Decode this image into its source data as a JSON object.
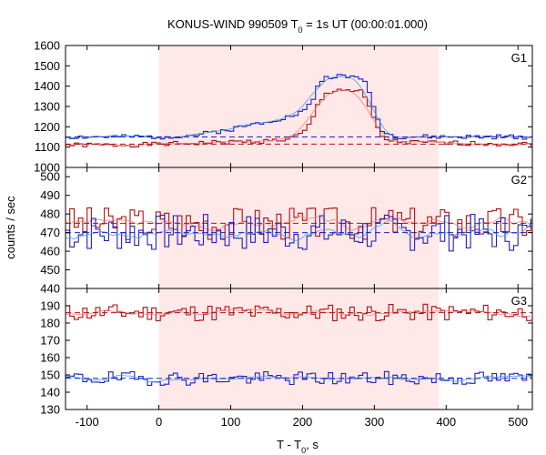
{
  "chart_data": {
    "type": "line",
    "title": "KONUS-WIND 990509 T",
    "title_sub": "0",
    "title_rest": " = 1s UT (00:00:01.000)",
    "xlabel": "T - T",
    "xlabel_sub": "0",
    "xlabel_rest": ", s",
    "ylabel": "counts / sec",
    "xlim": [
      -130,
      520
    ],
    "x_ticks": [
      -100,
      0,
      100,
      200,
      300,
      400,
      500
    ],
    "shaded_interval": [
      0,
      390
    ],
    "colors": {
      "red": "#b01010",
      "blue": "#2020c0",
      "pink": "#f08080",
      "lightblue": "#40a0e0",
      "shade": "#ffe8e8"
    },
    "panels": [
      {
        "label": "G1",
        "ylim": [
          1000,
          1600
        ],
        "y_ticks": [
          1000,
          1100,
          1200,
          1300,
          1400,
          1500,
          1600
        ],
        "background": {
          "red": 1115,
          "blue": 1150
        },
        "series": [
          {
            "name": "",
            "color": "#b01010",
            "x": [
              -130,
              -100,
              -50,
              0,
              50,
              100,
              150,
              180,
              200,
              210,
              220,
              230,
              240,
              250,
              260,
              270,
              280,
              290,
              300,
              310,
              330,
              400,
              520
            ],
            "y": [
              1110,
              1110,
              1110,
              1115,
              1120,
              1125,
              1130,
              1140,
              1175,
              1230,
              1320,
              1360,
              1380,
              1385,
              1380,
              1375,
              1370,
              1300,
              1200,
              1140,
              1125,
              1120,
              1115
            ]
          },
          {
            "name": "",
            "color": "#2020c0",
            "x": [
              -130,
              -100,
              -50,
              0,
              50,
              100,
              150,
              180,
              200,
              210,
              220,
              230,
              240,
              250,
              260,
              270,
              280,
              290,
              300,
              310,
              330,
              400,
              520
            ],
            "y": [
              1150,
              1150,
              1150,
              1150,
              1160,
              1190,
              1230,
              1250,
              1280,
              1320,
              1420,
              1440,
              1450,
              1450,
              1440,
              1450,
              1440,
              1380,
              1250,
              1170,
              1150,
              1150,
              1150
            ]
          }
        ]
      },
      {
        "label": "G2",
        "ylim": [
          440,
          505
        ],
        "y_ticks": [
          440,
          450,
          460,
          470,
          480,
          490,
          500
        ],
        "background": {
          "red": 475,
          "blue": 470
        },
        "series": [
          {
            "name": "",
            "color": "#b01010",
            "mean": 475,
            "amplitude": 9,
            "seed": 3
          },
          {
            "name": "",
            "color": "#2020c0",
            "mean": 470,
            "amplitude": 10,
            "seed": 7
          }
        ]
      },
      {
        "label": "G3",
        "ylim": [
          130,
          200
        ],
        "y_ticks": [
          130,
          140,
          150,
          160,
          170,
          180,
          190
        ],
        "background": {
          "red": 186,
          "blue": 148
        },
        "series": [
          {
            "name": "",
            "color": "#b01010",
            "mean": 186,
            "amplitude": 5,
            "seed": 11
          },
          {
            "name": "",
            "color": "#2020c0",
            "mean": 148,
            "amplitude": 4,
            "seed": 19
          }
        ]
      }
    ]
  }
}
